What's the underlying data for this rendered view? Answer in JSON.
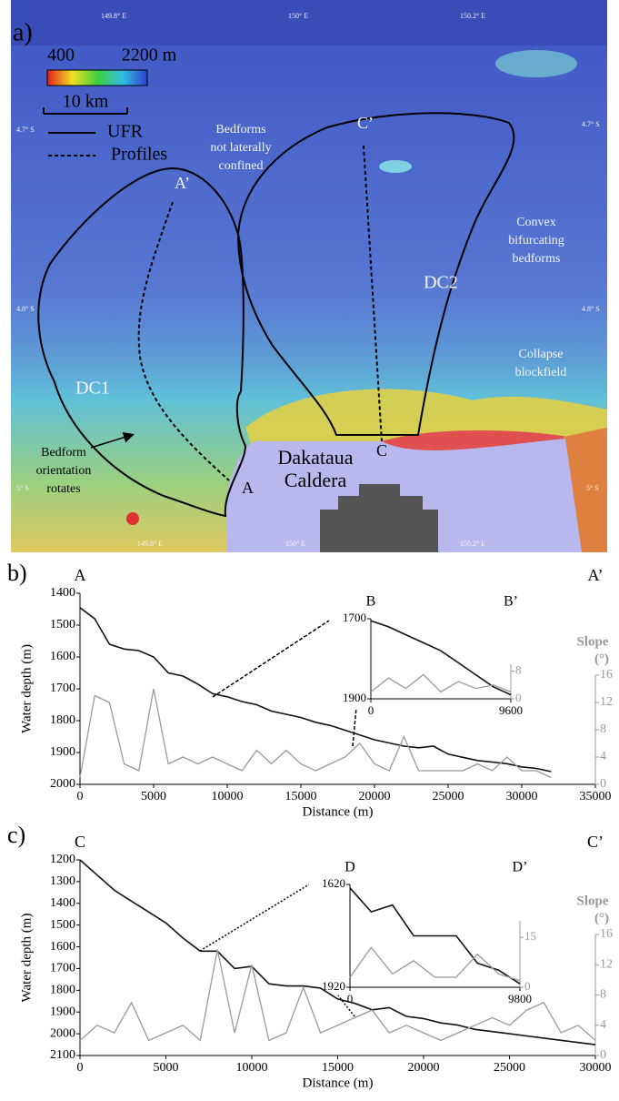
{
  "map": {
    "panel_label": "a)",
    "lon_labels": [
      "149.8° E",
      "150° E",
      "150.2° E"
    ],
    "lat_labels": [
      "4.7° S",
      "4.8° S",
      "5° S"
    ],
    "colorbar": {
      "range": [
        400,
        2200
      ],
      "labels": [
        400,
        {
          "value": 2200,
          "label": "2200 m"
        }
      ]
    },
    "scale_bar": "10 km",
    "legend": [
      "UFR",
      "Profiles"
    ],
    "annotations": {
      "bedforms_unconfined": [
        "Bedforms",
        "not laterally",
        "confined"
      ],
      "convex": [
        "Convex",
        "bifurcating",
        "bedforms"
      ],
      "collapse": [
        "Collapse",
        "blockfield"
      ],
      "rotation": [
        "Bedform",
        "orientation",
        "rotates"
      ],
      "caldera": [
        "Dakataua",
        "Caldera"
      ],
      "dc1": "DC1",
      "dc2": "DC2"
    },
    "points": {
      "a": "A",
      "a_prime": "A’",
      "c": "C",
      "c_prime": "C’"
    }
  },
  "chart_data": [
    {
      "type": "line",
      "panel_label": "b)",
      "start_label": "A",
      "end_label": "A’",
      "xlabel": "Distance (m)",
      "ylabel": "Water depth (m)",
      "y2label": [
        "Slope",
        "(°)"
      ],
      "xlim": [
        0,
        35000
      ],
      "xticks": [
        0,
        5000,
        10000,
        15000,
        20000,
        25000,
        30000,
        35000
      ],
      "ylim": [
        2000,
        1400
      ],
      "yticks": [
        1400,
        1500,
        1600,
        1700,
        1800,
        1900,
        2000
      ],
      "y2lim": [
        0,
        16
      ],
      "y2ticks": [
        0,
        4,
        8,
        12,
        16
      ],
      "x": [
        0,
        1000,
        2000,
        3000,
        4000,
        5000,
        6000,
        7000,
        8000,
        9000,
        10000,
        11000,
        12000,
        13000,
        14000,
        15000,
        16000,
        17000,
        18000,
        19000,
        20000,
        21000,
        22000,
        23000,
        24000,
        25000,
        26000,
        27000,
        28000,
        29000,
        30000,
        31000,
        32000
      ],
      "series": [
        {
          "color": "#111111",
          "values": [
            1445,
            1480,
            1560,
            1575,
            1580,
            1600,
            1650,
            1660,
            1685,
            1715,
            1725,
            1740,
            1750,
            1770,
            1780,
            1790,
            1805,
            1815,
            1830,
            1845,
            1860,
            1870,
            1880,
            1885,
            1880,
            1905,
            1915,
            1925,
            1930,
            1935,
            1945,
            1950,
            1960
          ]
        },
        {
          "color": "#999999",
          "axis": "y2",
          "values": [
            1,
            13,
            12,
            3,
            2,
            14,
            3,
            4,
            3,
            4,
            3,
            2,
            5,
            3,
            5,
            3,
            2,
            3,
            4,
            6,
            3,
            2,
            7,
            2,
            2,
            2,
            2,
            3,
            2,
            4,
            2,
            2,
            1
          ]
        }
      ],
      "inset": {
        "start_label": "B",
        "end_label": "B’",
        "xlim": [
          0,
          9600
        ],
        "xticks": [
          0,
          9600
        ],
        "ylim": [
          1900,
          1700
        ],
        "yticks": [
          1700,
          1900
        ],
        "y2lim": [
          0,
          10
        ],
        "y2ticks": [
          0,
          8
        ],
        "x": [
          0,
          1200,
          2400,
          3600,
          4800,
          6000,
          7200,
          8400,
          9600
        ],
        "series": [
          {
            "color": "#111111",
            "values": [
              1705,
              1720,
              1740,
              1760,
              1780,
              1810,
              1840,
              1870,
              1890
            ]
          },
          {
            "color": "#999999",
            "axis": "y2",
            "values": [
              2,
              6,
              3,
              7,
              2,
              5,
              3,
              4,
              2
            ]
          }
        ]
      }
    },
    {
      "type": "line",
      "panel_label": "c)",
      "start_label": "C",
      "end_label": "C’",
      "xlabel": "Distance (m)",
      "ylabel": "Water depth (m)",
      "y2label": [
        "Slope",
        "(°)"
      ],
      "xlim": [
        0,
        30000
      ],
      "xticks": [
        0,
        5000,
        10000,
        15000,
        20000,
        25000,
        30000
      ],
      "ylim": [
        2100,
        1200
      ],
      "yticks": [
        1200,
        1300,
        1400,
        1500,
        1600,
        1700,
        1800,
        1900,
        2000,
        2100
      ],
      "y2lim": [
        0,
        16
      ],
      "y2ticks": [
        0,
        4,
        8,
        12,
        16
      ],
      "x": [
        0,
        1000,
        2000,
        3000,
        4000,
        5000,
        6000,
        7000,
        8000,
        9000,
        10000,
        11000,
        12000,
        13000,
        14000,
        15000,
        16000,
        17000,
        18000,
        19000,
        20000,
        21000,
        22000,
        23000,
        24000,
        25000,
        26000,
        27000,
        28000,
        29000,
        30000
      ],
      "series": [
        {
          "color": "#111111",
          "values": [
            1200,
            1270,
            1340,
            1390,
            1440,
            1490,
            1560,
            1620,
            1620,
            1700,
            1690,
            1770,
            1780,
            1780,
            1790,
            1840,
            1860,
            1890,
            1880,
            1920,
            1930,
            1950,
            1960,
            1980,
            1990,
            2000,
            2010,
            2020,
            2030,
            2040,
            2050
          ]
        },
        {
          "color": "#999999",
          "axis": "y2",
          "values": [
            2,
            4,
            3,
            7,
            2,
            3,
            4,
            2,
            14,
            3,
            12,
            2,
            3,
            9,
            3,
            4,
            5,
            6,
            3,
            4,
            3,
            2,
            3,
            4,
            5,
            4,
            6,
            7,
            3,
            4,
            2
          ]
        }
      ],
      "inset": {
        "start_label": "D",
        "end_label": "D’",
        "xlim": [
          0,
          9800
        ],
        "xticks": [
          0,
          9800
        ],
        "ylim": [
          1920,
          1620
        ],
        "yticks": [
          1620,
          1920
        ],
        "y2lim": [
          0,
          20
        ],
        "y2ticks": [
          0,
          15
        ],
        "x": [
          0,
          1225,
          2450,
          3675,
          4900,
          6125,
          7350,
          8575,
          9800
        ],
        "series": [
          {
            "color": "#111111",
            "values": [
              1630,
              1700,
              1680,
              1770,
              1770,
              1770,
              1850,
              1870,
              1910
            ]
          },
          {
            "color": "#999999",
            "axis": "y2",
            "values": [
              3,
              12,
              4,
              8,
              3,
              3,
              10,
              4,
              2
            ]
          }
        ]
      }
    }
  ]
}
